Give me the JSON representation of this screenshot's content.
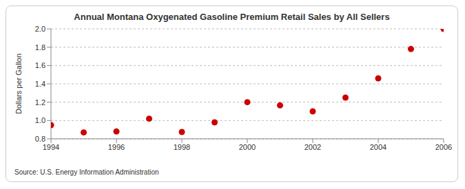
{
  "chart_data": {
    "type": "scatter",
    "title": "Annual Montana Oxygenated Gasoline Premium Retail Sales by All Sellers",
    "y_label": "Dollars per Gallon",
    "source": "Source: U.S. Energy Information Administration",
    "x": [
      1994,
      1995,
      1996,
      1997,
      1998,
      1999,
      2000,
      2001,
      2002,
      2003,
      2004,
      2005,
      2006
    ],
    "values": [
      0.95,
      0.87,
      0.88,
      1.02,
      0.875,
      0.98,
      1.2,
      1.165,
      1.1,
      1.25,
      1.46,
      1.78,
      2.0
    ],
    "color": "#cc0000",
    "marker": "circle",
    "xlim": [
      1994,
      2006
    ],
    "xticks": [
      1994,
      1996,
      1998,
      2000,
      2002,
      2004,
      2006
    ],
    "ylim": [
      0.8,
      2.0
    ],
    "yticks": [
      0.8,
      {
        "value": 1,
        "label": "1.0"
      },
      1.2,
      1.4,
      1.6,
      1.8,
      {
        "value": 2,
        "label": "2.0"
      }
    ],
    "grid": true
  }
}
